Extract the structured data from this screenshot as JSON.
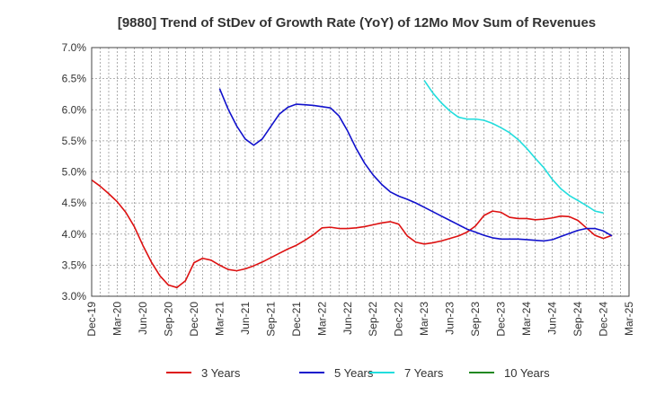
{
  "chart_data": {
    "type": "line",
    "title": "[9880]  Trend of StDev of Growth Rate (YoY) of 12Mo Mov Sum of Revenues",
    "xlabel": "",
    "ylabel": "",
    "ylim": [
      3.0,
      7.0
    ],
    "y_ticks": [
      3.0,
      3.5,
      4.0,
      4.5,
      5.0,
      5.5,
      6.0,
      6.5,
      7.0
    ],
    "y_tick_labels": [
      "3.0%",
      "3.5%",
      "4.0%",
      "4.5%",
      "5.0%",
      "5.5%",
      "6.0%",
      "6.5%",
      "7.0%"
    ],
    "x_tick_labels": [
      "Dec-19",
      "Mar-20",
      "Jun-20",
      "Sep-20",
      "Dec-20",
      "Mar-21",
      "Jun-21",
      "Sep-21",
      "Dec-21",
      "Mar-22",
      "Jun-22",
      "Sep-22",
      "Dec-22",
      "Mar-23",
      "Jun-23",
      "Sep-23",
      "Dec-23",
      "Mar-24",
      "Jun-24",
      "Sep-24",
      "Dec-24",
      "Mar-25"
    ],
    "x_start": "Dec-19",
    "x_unit": "month index from Dec-19",
    "x_max": 63,
    "grid": true,
    "legend_position": "bottom",
    "series": [
      {
        "name": "3 Years",
        "color": "#dd1111",
        "start_index": 0,
        "values": [
          4.87,
          4.77,
          4.65,
          4.52,
          4.35,
          4.12,
          3.82,
          3.55,
          3.33,
          3.18,
          3.14,
          3.25,
          3.54,
          3.61,
          3.58,
          3.5,
          3.43,
          3.41,
          3.44,
          3.49,
          3.55,
          3.62,
          3.69,
          3.76,
          3.82,
          3.9,
          3.99,
          4.1,
          4.11,
          4.09,
          4.09,
          4.1,
          4.12,
          4.15,
          4.18,
          4.2,
          4.16,
          3.97,
          3.87,
          3.84,
          3.86,
          3.89,
          3.93,
          3.97,
          4.03,
          4.13,
          4.3,
          4.37,
          4.35,
          4.27,
          4.25,
          4.25,
          4.23,
          4.24,
          4.26,
          4.29,
          4.28,
          4.22,
          4.1,
          3.98,
          3.93,
          3.98
        ]
      },
      {
        "name": "5 Years",
        "color": "#1111cc",
        "start_index": 15,
        "values": [
          6.34,
          6.01,
          5.74,
          5.53,
          5.43,
          5.53,
          5.73,
          5.93,
          6.04,
          6.09,
          6.08,
          6.07,
          6.05,
          6.03,
          5.9,
          5.66,
          5.38,
          5.14,
          4.95,
          4.8,
          4.68,
          4.61,
          4.56,
          4.5,
          4.43,
          4.36,
          4.29,
          4.22,
          4.15,
          4.08,
          4.03,
          3.98,
          3.94,
          3.92,
          3.92,
          3.92,
          3.91,
          3.9,
          3.89,
          3.91,
          3.96,
          4.01,
          4.06,
          4.09,
          4.09,
          4.05,
          3.97
        ]
      },
      {
        "name": "7 Years",
        "color": "#22dddd",
        "start_index": 39,
        "values": [
          6.47,
          6.27,
          6.11,
          5.98,
          5.88,
          5.85,
          5.85,
          5.83,
          5.78,
          5.71,
          5.63,
          5.52,
          5.38,
          5.22,
          5.07,
          4.88,
          4.73,
          4.62,
          4.54,
          4.46,
          4.37,
          4.34
        ]
      },
      {
        "name": "10 Years",
        "color": "#228822",
        "start_index": 0,
        "values": []
      }
    ]
  }
}
